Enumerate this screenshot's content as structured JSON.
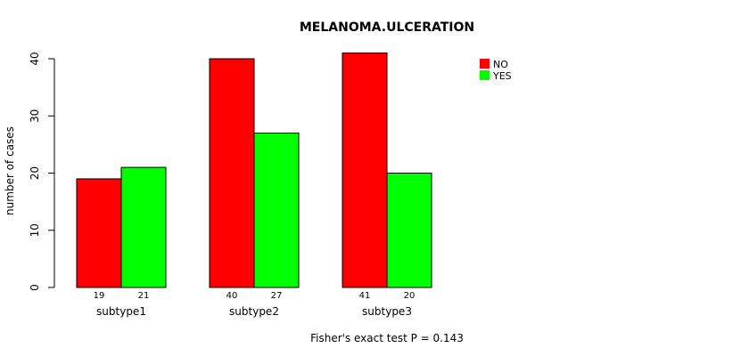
{
  "chart_data": {
    "type": "bar",
    "title": "MELANOMA.ULCERATION",
    "xlabel": "",
    "ylabel": "number of cases",
    "ylim": [
      0,
      40
    ],
    "yticks": [
      0,
      10,
      20,
      30,
      40
    ],
    "categories": [
      "subtype1",
      "subtype2",
      "subtype3"
    ],
    "series": [
      {
        "name": "NO",
        "color": "#ff0000",
        "values": [
          19,
          40,
          41
        ]
      },
      {
        "name": "YES",
        "color": "#00ff00",
        "values": [
          21,
          27,
          20
        ]
      }
    ],
    "legend_position": "top-right",
    "grid": false,
    "footnote": "Fisher's exact test P = 0.143"
  }
}
